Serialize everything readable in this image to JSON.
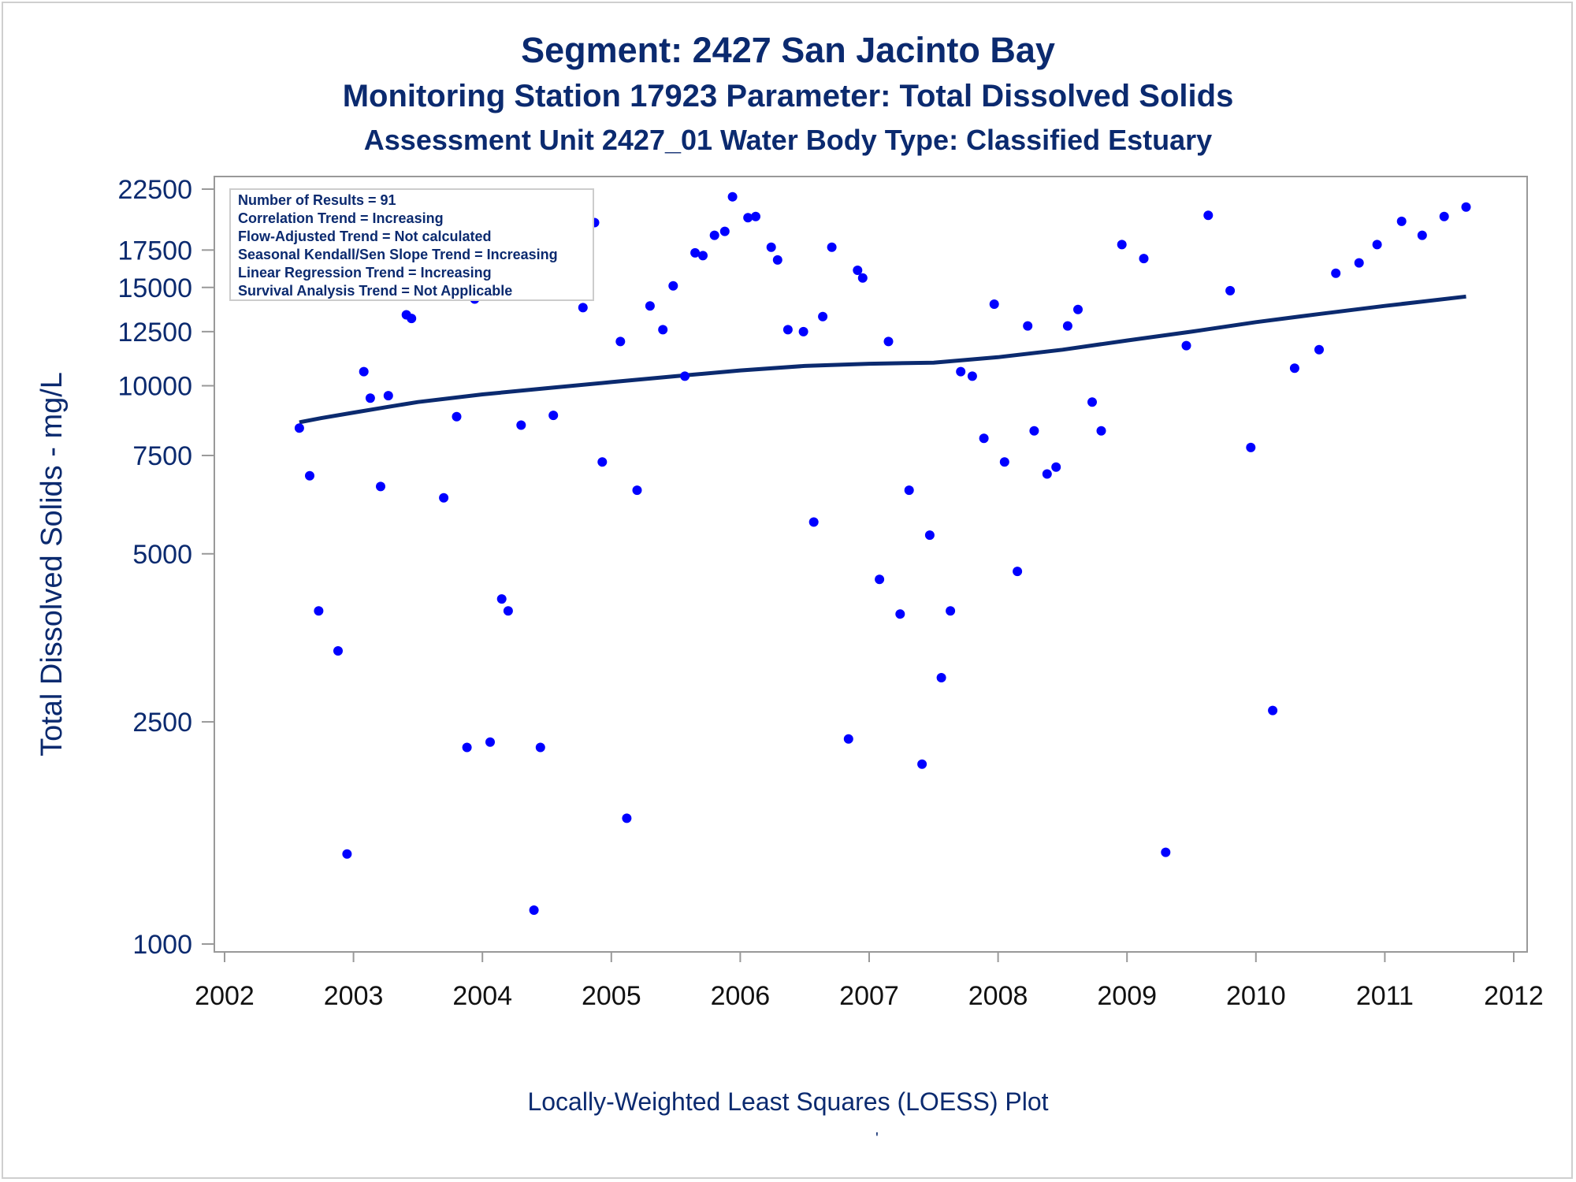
{
  "titles": {
    "title": "Segment: 2427  San Jacinto Bay",
    "subtitle1": "Monitoring Station 17923 Parameter: Total Dissolved Solids",
    "subtitle2": "Assessment Unit 2427_01   Water Body Type: Classified Estuary"
  },
  "footnote": "Locally-Weighted Least Squares (LOESS) Plot",
  "footnote_mark": "'",
  "inset_lines": [
    "Number of Results = 91",
    "Correlation Trend = Increasing",
    "Flow-Adjusted Trend = Not calculated",
    "Seasonal Kendall/Sen Slope Trend = Increasing",
    "Linear Regression Trend = Increasing",
    "Survival Analysis Trend = Not Applicable"
  ],
  "colors": {
    "text": "#0b2a6f",
    "points": "#0000ff",
    "line": "#0b2a6f",
    "frame": "#999999"
  },
  "chart_data": {
    "type": "scatter",
    "title": "Segment: 2427  San Jacinto Bay",
    "xlabel": "",
    "ylabel": "Total Dissolved Solids - mg/L",
    "xlim": [
      2002,
      2012
    ],
    "y_scale": "log",
    "ylim": [
      1000,
      22500
    ],
    "grid": false,
    "x_ticks": [
      2002,
      2003,
      2004,
      2005,
      2006,
      2007,
      2008,
      2009,
      2010,
      2011,
      2012
    ],
    "x_tick_labels": [
      "2002",
      "2003",
      "2004",
      "2005",
      "2006",
      "2007",
      "2008",
      "2009",
      "2010",
      "2011",
      "2012"
    ],
    "y_ticks": [
      1000,
      2500,
      5000,
      7500,
      10000,
      12500,
      15000,
      17500,
      22500
    ],
    "y_tick_labels": [
      "1000",
      "2500",
      "5000",
      "7500",
      "10000",
      "12500",
      "15000",
      "17500",
      "22500"
    ],
    "points": [
      [
        2002.58,
        8400
      ],
      [
        2002.66,
        6900
      ],
      [
        2002.73,
        3950
      ],
      [
        2002.8,
        14600
      ],
      [
        2002.88,
        3350
      ],
      [
        2002.95,
        1450
      ],
      [
        2003.08,
        10600
      ],
      [
        2003.13,
        9500
      ],
      [
        2003.21,
        6600
      ],
      [
        2003.27,
        9600
      ],
      [
        2003.41,
        13400
      ],
      [
        2003.45,
        13200
      ],
      [
        2003.62,
        17800
      ],
      [
        2003.7,
        6300
      ],
      [
        2003.8,
        8800
      ],
      [
        2003.88,
        2250
      ],
      [
        2003.94,
        14300
      ],
      [
        2004.06,
        2300
      ],
      [
        2004.15,
        4150
      ],
      [
        2004.2,
        3950
      ],
      [
        2004.3,
        8500
      ],
      [
        2004.4,
        1150
      ],
      [
        2004.45,
        2250
      ],
      [
        2004.55,
        8850
      ],
      [
        2004.62,
        16200
      ],
      [
        2004.78,
        13800
      ],
      [
        2004.87,
        19600
      ],
      [
        2004.93,
        7300
      ],
      [
        2005.07,
        12000
      ],
      [
        2005.12,
        1680
      ],
      [
        2005.2,
        6500
      ],
      [
        2005.3,
        13900
      ],
      [
        2005.4,
        12600
      ],
      [
        2005.48,
        15100
      ],
      [
        2005.57,
        10400
      ],
      [
        2005.65,
        17300
      ],
      [
        2005.71,
        17100
      ],
      [
        2005.8,
        18600
      ],
      [
        2005.88,
        18900
      ],
      [
        2005.94,
        21800
      ],
      [
        2006.06,
        20000
      ],
      [
        2006.12,
        20100
      ],
      [
        2006.24,
        17700
      ],
      [
        2006.29,
        16800
      ],
      [
        2006.37,
        12600
      ],
      [
        2006.49,
        12500
      ],
      [
        2006.57,
        5700
      ],
      [
        2006.64,
        13300
      ],
      [
        2006.71,
        17700
      ],
      [
        2006.84,
        2330
      ],
      [
        2006.91,
        16100
      ],
      [
        2006.95,
        15600
      ],
      [
        2007.08,
        4500
      ],
      [
        2007.15,
        12000
      ],
      [
        2007.24,
        3900
      ],
      [
        2007.31,
        6500
      ],
      [
        2007.41,
        2100
      ],
      [
        2007.47,
        5400
      ],
      [
        2007.56,
        3000
      ],
      [
        2007.63,
        3950
      ],
      [
        2007.71,
        10600
      ],
      [
        2007.8,
        10400
      ],
      [
        2007.89,
        8050
      ],
      [
        2007.97,
        14000
      ],
      [
        2008.05,
        7300
      ],
      [
        2008.15,
        4650
      ],
      [
        2008.23,
        12800
      ],
      [
        2008.28,
        8300
      ],
      [
        2008.38,
        6950
      ],
      [
        2008.45,
        7150
      ],
      [
        2008.54,
        12800
      ],
      [
        2008.62,
        13700
      ],
      [
        2008.73,
        9350
      ],
      [
        2008.8,
        8300
      ],
      [
        2008.96,
        17900
      ],
      [
        2009.13,
        16900
      ],
      [
        2009.3,
        1460
      ],
      [
        2009.46,
        11800
      ],
      [
        2009.63,
        20200
      ],
      [
        2009.8,
        14800
      ],
      [
        2009.96,
        7750
      ],
      [
        2010.13,
        2620
      ],
      [
        2010.3,
        10750
      ],
      [
        2010.49,
        11600
      ],
      [
        2010.62,
        15900
      ],
      [
        2010.8,
        16600
      ],
      [
        2010.94,
        17900
      ],
      [
        2011.13,
        19700
      ],
      [
        2011.29,
        18600
      ],
      [
        2011.46,
        20100
      ],
      [
        2011.63,
        20900
      ]
    ],
    "loess": [
      [
        2002.58,
        8600
      ],
      [
        2002.75,
        8750
      ],
      [
        2003.0,
        8950
      ],
      [
        2003.25,
        9150
      ],
      [
        2003.5,
        9350
      ],
      [
        2004.0,
        9650
      ],
      [
        2004.5,
        9900
      ],
      [
        2005.0,
        10150
      ],
      [
        2005.5,
        10400
      ],
      [
        2006.0,
        10650
      ],
      [
        2006.5,
        10850
      ],
      [
        2007.0,
        10950
      ],
      [
        2007.5,
        11000
      ],
      [
        2008.0,
        11250
      ],
      [
        2008.5,
        11600
      ],
      [
        2009.0,
        12050
      ],
      [
        2009.5,
        12500
      ],
      [
        2010.0,
        13000
      ],
      [
        2010.5,
        13450
      ],
      [
        2011.0,
        13900
      ],
      [
        2011.63,
        14450
      ]
    ]
  }
}
